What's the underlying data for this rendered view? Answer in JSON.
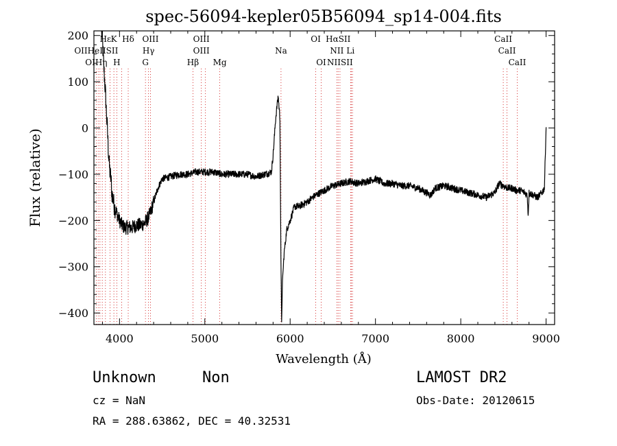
{
  "chart_data": {
    "type": "line",
    "title": "spec-56094-kepler05B56094_sp14-004.fits",
    "xlabel": "Wavelength (Å)",
    "ylabel": "Flux (relative)",
    "xlim": [
      3700,
      9100
    ],
    "ylim": [
      -425,
      210
    ],
    "xticks": [
      4000,
      5000,
      6000,
      7000,
      8000,
      9000
    ],
    "yticks": [
      -400,
      -300,
      -200,
      -100,
      0,
      100,
      200
    ],
    "grid": false,
    "series": [
      {
        "x": [
          3790,
          3800,
          3810,
          3820,
          3830,
          3840,
          3850,
          3860,
          3870,
          3880,
          3890,
          3900,
          3910,
          3920,
          3940,
          3960,
          3980,
          4000,
          4030,
          4060,
          4100,
          4150,
          4200,
          4250,
          4300,
          4350,
          4400,
          4450,
          4500,
          4600,
          4700,
          4800,
          4900,
          5000,
          5100,
          5200,
          5300,
          5400,
          5500,
          5600,
          5700,
          5780,
          5800,
          5830,
          5860,
          5880,
          5893,
          5900,
          5905,
          5910,
          5930,
          5960,
          6000,
          6050,
          6100,
          6150,
          6200,
          6300,
          6400,
          6500,
          6600,
          6700,
          6800,
          6900,
          7000,
          7100,
          7200,
          7300,
          7400,
          7500,
          7600,
          7650,
          7700,
          7800,
          7900,
          8000,
          8100,
          8200,
          8300,
          8400,
          8450,
          8500,
          8550,
          8600,
          8650,
          8700,
          8750,
          8780,
          8790,
          8800,
          8850,
          8900,
          8950,
          8980,
          9000
        ],
        "y": [
          210,
          190,
          150,
          120,
          90,
          60,
          20,
          -10,
          -50,
          -80,
          -100,
          -110,
          -140,
          -150,
          -170,
          -180,
          -190,
          -200,
          -210,
          -215,
          -215,
          -215,
          -210,
          -210,
          -205,
          -190,
          -160,
          -130,
          -110,
          -105,
          -100,
          -100,
          -95,
          -95,
          -95,
          -100,
          -100,
          -100,
          -100,
          -105,
          -100,
          -95,
          -60,
          20,
          70,
          20,
          -300,
          -420,
          -380,
          -330,
          -270,
          -220,
          -200,
          -170,
          -170,
          -165,
          -160,
          -145,
          -135,
          -125,
          -120,
          -115,
          -120,
          -115,
          -110,
          -120,
          -120,
          -125,
          -125,
          -130,
          -140,
          -145,
          -130,
          -125,
          -130,
          -135,
          -140,
          -145,
          -150,
          -140,
          -120,
          -125,
          -130,
          -130,
          -135,
          -135,
          -140,
          -145,
          -190,
          -140,
          -145,
          -150,
          -140,
          -130,
          0
        ]
      }
    ],
    "line_labels": {
      "row1": [
        {
          "text": "Hε",
          "x": 3835
        },
        {
          "text": "K",
          "x": 3934
        },
        {
          "text": "Hδ",
          "x": 4102
        },
        {
          "text": "OIII",
          "x": 4363
        },
        {
          "text": "OIII",
          "x": 4959
        },
        {
          "text": "OI",
          "x": 6300
        },
        {
          "text": "HαSII",
          "x": 6563
        },
        {
          "text": "CaII",
          "x": 8498
        }
      ],
      "row2": [
        {
          "text": "OIIHeIISII",
          "x": 3727
        },
        {
          "text": "Hγ",
          "x": 4340
        },
        {
          "text": "OIII",
          "x": 4959
        },
        {
          "text": "Na",
          "x": 5893
        },
        {
          "text": "NII",
          "x": 6548
        },
        {
          "text": "Li",
          "x": 6708
        },
        {
          "text": "CaII",
          "x": 8542
        }
      ],
      "row3": [
        {
          "text": "OIHη",
          "x": 3727
        },
        {
          "text": "H",
          "x": 3968
        },
        {
          "text": "G",
          "x": 4304
        },
        {
          "text": "Hβ",
          "x": 4861
        },
        {
          "text": "Mg",
          "x": 5175
        },
        {
          "text": "OI",
          "x": 6364
        },
        {
          "text": "NIISII",
          "x": 6584
        },
        {
          "text": "CaII",
          "x": 8662
        }
      ]
    },
    "marker_lines": [
      3727,
      3750,
      3771,
      3798,
      3835,
      3889,
      3934,
      3968,
      4026,
      4102,
      4304,
      4340,
      4363,
      4861,
      4959,
      5007,
      5175,
      5893,
      6300,
      6364,
      6548,
      6563,
      6584,
      6708,
      6717,
      6731,
      8498,
      8542,
      8662
    ]
  },
  "info": {
    "object_class": "Unknown",
    "object_subclass": "Non",
    "release": "LAMOST DR2",
    "cz": "cz = NaN",
    "obs_date": "Obs-Date: 20120615",
    "radec": "RA = 288.63862, DEC =  40.32531"
  },
  "colors": {
    "spectrum": "#000000",
    "marker_line": "#cc0000",
    "text": "#000000",
    "background": "#ffffff"
  }
}
